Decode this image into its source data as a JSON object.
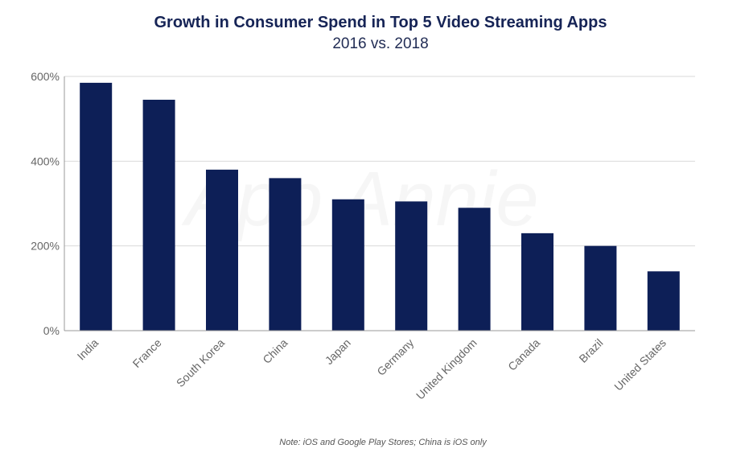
{
  "title": "Growth in Consumer Spend in Top 5 Video Streaming Apps",
  "subtitle": "2016 vs. 2018",
  "watermark": "App Annie",
  "note": "Note: iOS and Google Play Stores; China is iOS only",
  "colors": {
    "bar": "#0d1f57",
    "grid": "#d9d9d9",
    "axis": "#999999"
  },
  "chart_data": {
    "type": "bar",
    "title": "Growth in Consumer Spend in Top 5 Video Streaming Apps",
    "subtitle": "2016 vs. 2018",
    "xlabel": "",
    "ylabel": "",
    "categories": [
      "India",
      "France",
      "South Korea",
      "China",
      "Japan",
      "Germany",
      "United Kingdom",
      "Canada",
      "Brazil",
      "United States"
    ],
    "values": [
      585,
      545,
      380,
      360,
      310,
      305,
      290,
      230,
      200,
      140
    ],
    "ylim": [
      0,
      600
    ],
    "yticks": [
      0,
      200,
      400,
      600
    ],
    "ytick_labels": [
      "0%",
      "200%",
      "400%",
      "600%"
    ],
    "grid": true,
    "legend": "none"
  }
}
